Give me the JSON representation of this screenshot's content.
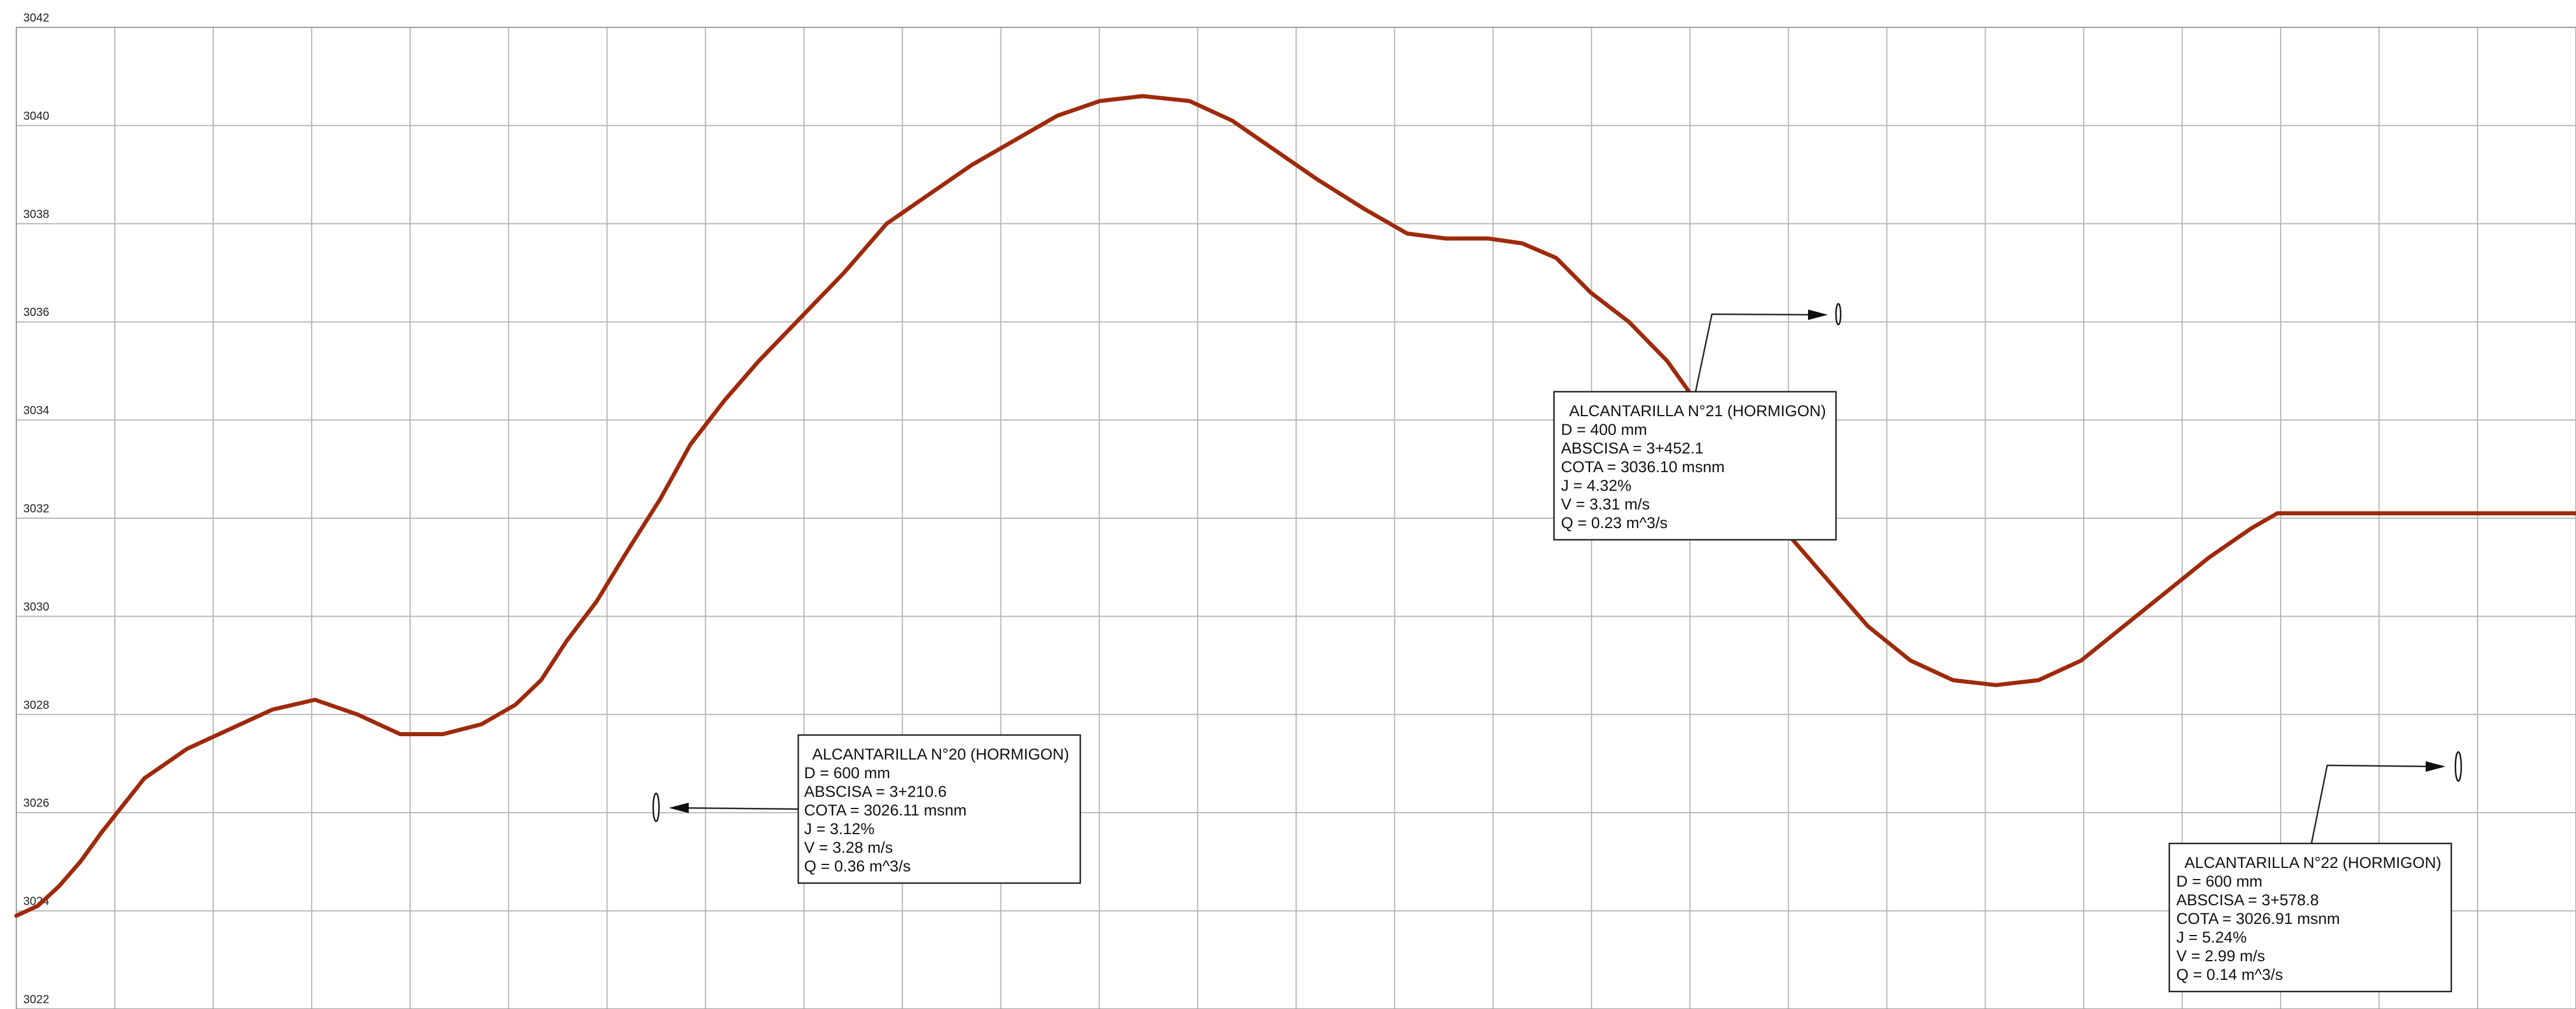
{
  "chart_data": {
    "type": "line",
    "title": "",
    "xlabel": "",
    "ylabel": "",
    "xlim": [
      3000,
      3600
    ],
    "ylim": [
      3022,
      3042
    ],
    "y_ticks": [
      "3022",
      "3024",
      "3026",
      "3028",
      "3030",
      "3032",
      "3034",
      "3036",
      "3038",
      "3040",
      "3042"
    ],
    "grid": true,
    "vertical_grid_count": 26,
    "line_color": "#9e2a0c",
    "series": [
      {
        "x": [
          3000,
          3005,
          3010,
          3015,
          3020,
          3030,
          3040,
          3050,
          3060,
          3070,
          3080,
          3090,
          3100,
          3109,
          3117,
          3123,
          3129,
          3136,
          3143,
          3151,
          3158,
          3166,
          3174,
          3184,
          3194,
          3204,
          3214,
          3224,
          3234,
          3244,
          3254,
          3264,
          3275,
          3285,
          3295,
          3305,
          3316,
          3326,
          3335,
          3345,
          3353,
          3361,
          3369,
          3378,
          3387,
          3396,
          3404,
          3414,
          3424,
          3434,
          3444,
          3454,
          3464,
          3474,
          3484,
          3494,
          3504,
          3514,
          3524,
          3530,
          3535,
          3545,
          3555,
          3565,
          3575,
          3585,
          3593,
          3600
        ],
        "y": [
          3023.9,
          3024.1,
          3024.5,
          3025.0,
          3025.6,
          3026.7,
          3027.3,
          3027.7,
          3028.1,
          3028.3,
          3028.0,
          3027.6,
          3027.6,
          3027.8,
          3028.2,
          3028.7,
          3029.5,
          3030.3,
          3031.3,
          3032.4,
          3033.5,
          3034.4,
          3035.2,
          3036.1,
          3037.0,
          3038.0,
          3038.6,
          3039.2,
          3039.7,
          3040.2,
          3040.5,
          3040.6,
          3040.5,
          3040.1,
          3039.5,
          3038.9,
          3038.3,
          3037.8,
          3037.7,
          3037.7,
          3037.6,
          3037.3,
          3036.6,
          3036.0,
          3035.2,
          3034.1,
          3032.9,
          3031.8,
          3030.8,
          3029.8,
          3029.1,
          3028.7,
          3028.6,
          3028.7,
          3029.1,
          3029.8,
          3030.5,
          3031.2,
          3031.8,
          3032.1,
          3032.1,
          3032.1,
          3032.1,
          3032.1,
          3032.1,
          3032.1,
          3032.1,
          3032.1
        ]
      }
    ]
  },
  "annotations": [
    {
      "title": "ALCANTARILLA N°20 (HORMIGON)",
      "lines": [
        "D = 600 mm",
        "ABSCISA = 3+210.6",
        "COTA = 3026.11 msnm",
        "J = 3.12%",
        "V = 3.28 m/s",
        "Q = 0.36 m^3/s"
      ]
    },
    {
      "title": "ALCANTARILLA N°21 (HORMIGON)",
      "lines": [
        "D = 400 mm",
        "ABSCISA = 3+452.1",
        "COTA = 3036.10 msnm",
        "J = 4.32%",
        "V = 3.31 m/s",
        "Q = 0.23 m^3/s"
      ]
    },
    {
      "title": "ALCANTARILLA N°22 (HORMIGON)",
      "lines": [
        "D = 600 mm",
        "ABSCISA = 3+578.8",
        "COTA = 3026.91 msnm",
        "J = 5.24%",
        "V = 2.99 m/s",
        "Q = 0.14 m^3/s"
      ]
    }
  ]
}
